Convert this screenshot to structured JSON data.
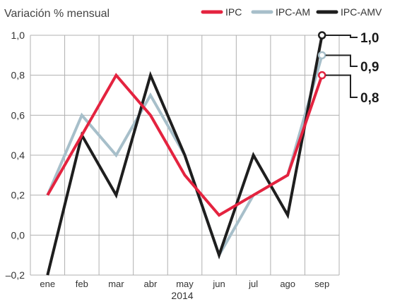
{
  "chart_data": {
    "type": "line",
    "ylabel": "Variación % mensual",
    "xlabel": "2014",
    "categories": [
      "ene",
      "feb",
      "mar",
      "abr",
      "may",
      "jun",
      "jul",
      "ago",
      "sep"
    ],
    "ylim": [
      -0.2,
      1.0
    ],
    "yticks": [
      -0.2,
      0.0,
      0.2,
      0.4,
      0.6,
      0.8,
      1.0
    ],
    "ytick_labels": [
      "–0,2",
      "0,0",
      "0,2",
      "0,4",
      "0,6",
      "0,8",
      "1,0"
    ],
    "grid": true,
    "legend_position": "top-right",
    "series": [
      {
        "name": "IPC",
        "color": "#e4233f",
        "values": [
          0.2,
          0.5,
          0.8,
          0.6,
          0.3,
          0.1,
          0.2,
          0.3,
          0.8
        ]
      },
      {
        "name": "IPC-AM",
        "color": "#a7bfca",
        "values": [
          0.2,
          0.6,
          0.4,
          0.7,
          0.4,
          -0.1,
          0.2,
          0.3,
          0.9
        ]
      },
      {
        "name": "IPC-AMV",
        "color": "#1e1e1e",
        "values": [
          -0.2,
          0.5,
          0.2,
          0.8,
          0.4,
          -0.1,
          0.4,
          0.1,
          1.0
        ]
      }
    ],
    "end_labels": [
      {
        "series": "IPC-AMV",
        "text": "1,0"
      },
      {
        "series": "IPC-AM",
        "text": "0,9"
      },
      {
        "series": "IPC",
        "text": "0,8"
      }
    ]
  }
}
